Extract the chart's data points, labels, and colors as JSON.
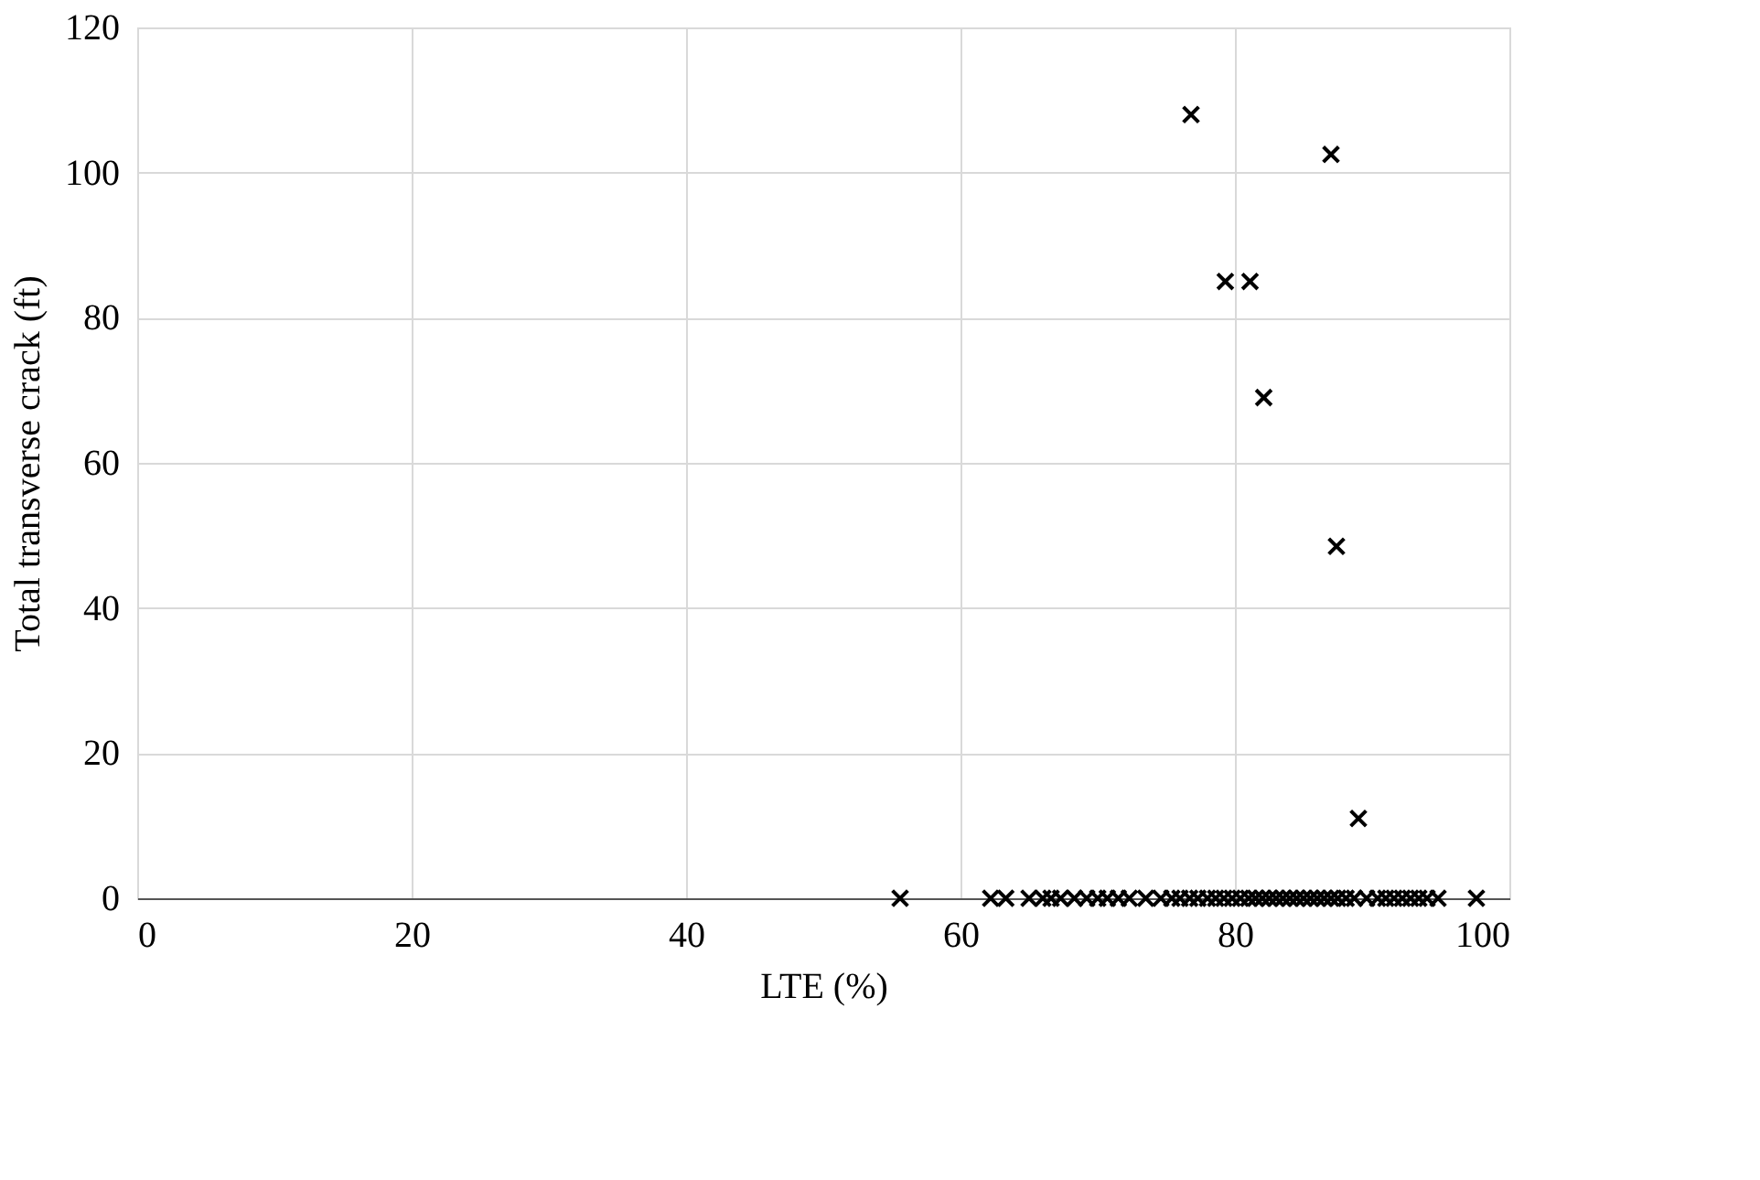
{
  "chart_data": {
    "type": "scatter",
    "xlabel": "LTE (%)",
    "ylabel": "Total transverse crack (ft)",
    "x": [
      76.8,
      87.0,
      79.3,
      81.1,
      82.1,
      87.4,
      89.0,
      55.6,
      62.2,
      63.3,
      65.0,
      66.0,
      66.6,
      67.3,
      68.3,
      69.2,
      70.0,
      70.7,
      71.5,
      72.3,
      73.5,
      74.6,
      75.4,
      76.0,
      76.7,
      77.3,
      78.0,
      78.6,
      79.2,
      79.8,
      80.4,
      81.0,
      81.5,
      82.0,
      82.5,
      83.0,
      83.5,
      84.0,
      84.5,
      85.0,
      85.5,
      86.0,
      86.5,
      87.0,
      87.5,
      88.1,
      88.7,
      89.6,
      90.4,
      91.0,
      91.6,
      92.2,
      92.8,
      93.4,
      94.0,
      94.8,
      97.6
    ],
    "values": [
      108,
      102.5,
      85,
      85,
      69,
      48.5,
      11,
      0,
      0,
      0,
      0,
      0,
      0,
      0,
      0,
      0,
      0,
      0,
      0,
      0,
      0,
      0,
      0,
      0,
      0,
      0,
      0,
      0,
      0,
      0,
      0,
      0,
      0,
      0,
      0,
      0,
      0,
      0,
      0,
      0,
      0,
      0,
      0,
      0,
      0,
      0,
      0,
      0,
      0,
      0,
      0,
      0,
      0,
      0,
      0,
      0,
      0
    ],
    "color": "#000000",
    "marker": "cross",
    "xlim": [
      0,
      100
    ],
    "xticks": [
      0,
      20,
      40,
      60,
      80,
      100
    ],
    "ylim": [
      0,
      120
    ],
    "yticks": [
      0,
      20,
      40,
      60,
      80,
      100,
      120
    ],
    "grid": true
  }
}
